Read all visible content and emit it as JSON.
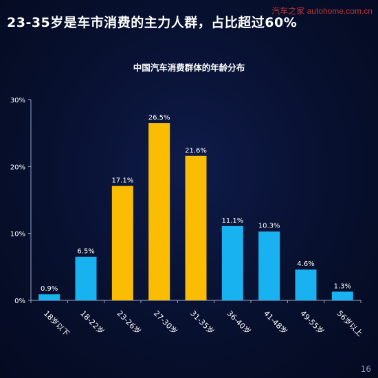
{
  "header": {
    "headline": "23-35岁是车市消费的主力人群，占比超过60%",
    "watermark": "汽车之家 autohome.com.cn"
  },
  "footer": {
    "page_number": "16"
  },
  "colors": {
    "bar_default": "#19b2f0",
    "bar_highlight": "#fbbd04",
    "axis": "#9aa6c6",
    "text": "#ffffff"
  },
  "chart_data": {
    "type": "bar",
    "title": "中国汽车消费群体的年龄分布",
    "categories": [
      "18岁以下",
      "18-22岁",
      "23-26岁",
      "27-30岁",
      "31-35岁",
      "36-40岁",
      "41-48岁",
      "49-55岁",
      "56岁以上"
    ],
    "values": [
      0.9,
      6.5,
      17.1,
      26.5,
      21.6,
      11.1,
      10.3,
      4.6,
      1.3
    ],
    "value_labels": [
      "0.9%",
      "6.5%",
      "17.1%",
      "26.5%",
      "21.6%",
      "11.1%",
      "10.3%",
      "4.6%",
      "1.3%"
    ],
    "highlight": [
      false,
      false,
      true,
      true,
      true,
      false,
      false,
      false,
      false
    ],
    "ylim": [
      0,
      30
    ],
    "yticks": [
      0,
      10,
      20,
      30
    ],
    "ytick_labels": [
      "0%",
      "10%",
      "20%",
      "30%"
    ],
    "grid": false,
    "xlabel": "",
    "ylabel": ""
  }
}
